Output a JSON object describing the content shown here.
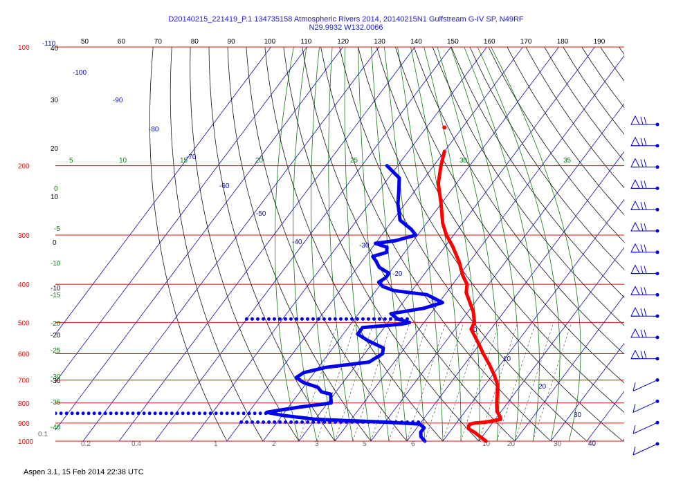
{
  "title": {
    "line1": "D20140215_221419_P.1 134735158 Atmospheric Rivers 2014, 20140215N1 Gulfstream G-IV SP, N49RF",
    "line2": "N29.9932 W132.0066"
  },
  "footer": "Aspen 3.1, 15 Feb 2014  22:38 UTC",
  "colors": {
    "isobar": "#e01010",
    "isotherm": "#0b0bb0",
    "dry_adiabat": "#111111",
    "moist_adiabat": "#117711",
    "mixing_ratio": "#555555",
    "temperature": "#ff0000",
    "dewpoint": "#0000ee",
    "wind": "#0000cc"
  },
  "chart_data": {
    "type": "skew-t",
    "grid": true,
    "pressure_levels": [
      "100",
      "200",
      "300",
      "400",
      "500",
      "600",
      "700",
      "800",
      "900",
      "1000"
    ],
    "top_scale": [
      "50",
      "60",
      "70",
      "80",
      "90",
      "100",
      "110",
      "120",
      "130",
      "140",
      "150",
      "160",
      "170",
      "180",
      "190"
    ],
    "isotherm_labels": [
      "-110",
      "-100",
      "-90",
      "-80",
      "-70",
      "-60",
      "-50",
      "-40",
      "-30",
      "-20",
      "-10",
      "0",
      "10",
      "20",
      "30",
      "40"
    ],
    "dry_adiabat_labels": [
      "40",
      "30",
      "20",
      "10",
      "0",
      "-10",
      "-20",
      "-30"
    ],
    "moist_adiabat_labels": [
      "5",
      "10",
      "15",
      "20",
      "25",
      "30",
      "35",
      "0",
      "-5",
      "-10",
      "-15",
      "-20",
      "-25",
      "-30",
      "-35",
      "-40"
    ],
    "mixing_ratio_labels": [
      "0.1",
      "0.2",
      "0.4",
      "1",
      "2",
      "3",
      "5",
      "6",
      "10",
      "20",
      "30",
      "40"
    ],
    "temperature_profile": [
      {
        "p": 184,
        "t": -60
      },
      {
        "p": 200,
        "t": -58
      },
      {
        "p": 222,
        "t": -55
      },
      {
        "p": 250,
        "t": -50
      },
      {
        "p": 280,
        "t": -45.5
      },
      {
        "p": 300,
        "t": -42
      },
      {
        "p": 320,
        "t": -38
      },
      {
        "p": 350,
        "t": -33
      },
      {
        "p": 380,
        "t": -29
      },
      {
        "p": 400,
        "t": -26
      },
      {
        "p": 420,
        "t": -24.5
      },
      {
        "p": 440,
        "t": -22
      },
      {
        "p": 470,
        "t": -18.5
      },
      {
        "p": 500,
        "t": -16
      },
      {
        "p": 520,
        "t": -15.5
      },
      {
        "p": 560,
        "t": -11
      },
      {
        "p": 600,
        "t": -7
      },
      {
        "p": 640,
        "t": -3
      },
      {
        "p": 680,
        "t": 0.5
      },
      {
        "p": 720,
        "t": 3.5
      },
      {
        "p": 760,
        "t": 5.3
      },
      {
        "p": 800,
        "t": 7
      },
      {
        "p": 840,
        "t": 8.8
      },
      {
        "p": 870,
        "t": 11
      },
      {
        "p": 880,
        "t": 11.5
      },
      {
        "p": 895,
        "t": 8
      },
      {
        "p": 900,
        "t": 5
      },
      {
        "p": 905,
        "t": 4
      },
      {
        "p": 915,
        "t": 4
      },
      {
        "p": 930,
        "t": 4.5
      },
      {
        "p": 950,
        "t": 7
      },
      {
        "p": 980,
        "t": 10
      },
      {
        "p": 1000,
        "t": 12
      }
    ],
    "temperature_isolated_point": {
      "p": 160,
      "t": -65
    },
    "dewpoint_profile": [
      {
        "p": 200,
        "t": -73
      },
      {
        "p": 215,
        "t": -67
      },
      {
        "p": 235,
        "t": -64
      },
      {
        "p": 250,
        "t": -62
      },
      {
        "p": 262,
        "t": -60
      },
      {
        "p": 275,
        "t": -58
      },
      {
        "p": 290,
        "t": -53
      },
      {
        "p": 300,
        "t": -50.5
      },
      {
        "p": 310,
        "t": -55
      },
      {
        "p": 315,
        "t": -60
      },
      {
        "p": 322,
        "t": -56
      },
      {
        "p": 332,
        "t": -55
      },
      {
        "p": 340,
        "t": -58
      },
      {
        "p": 350,
        "t": -56
      },
      {
        "p": 362,
        "t": -54
      },
      {
        "p": 375,
        "t": -50
      },
      {
        "p": 385,
        "t": -50
      },
      {
        "p": 395,
        "t": -51
      },
      {
        "p": 405,
        "t": -49
      },
      {
        "p": 415,
        "t": -45
      },
      {
        "p": 425,
        "t": -35
      },
      {
        "p": 445,
        "t": -29
      },
      {
        "p": 460,
        "t": -33
      },
      {
        "p": 475,
        "t": -41
      },
      {
        "p": 490,
        "t": -38
      },
      {
        "p": 500,
        "t": -34
      },
      {
        "p": 505,
        "t": -36
      },
      {
        "p": 515,
        "t": -46
      },
      {
        "p": 535,
        "t": -46
      },
      {
        "p": 555,
        "t": -42
      },
      {
        "p": 580,
        "t": -36
      },
      {
        "p": 600,
        "t": -35
      },
      {
        "p": 630,
        "t": -37
      },
      {
        "p": 650,
        "t": -48
      },
      {
        "p": 670,
        "t": -53
      },
      {
        "p": 690,
        "t": -54
      },
      {
        "p": 710,
        "t": -51
      },
      {
        "p": 730,
        "t": -46
      },
      {
        "p": 750,
        "t": -44
      },
      {
        "p": 760,
        "t": -41
      },
      {
        "p": 780,
        "t": -40
      },
      {
        "p": 800,
        "t": -39
      },
      {
        "p": 820,
        "t": -47
      },
      {
        "p": 835,
        "t": -52
      },
      {
        "p": 845,
        "t": -55
      },
      {
        "p": 860,
        "t": -50
      },
      {
        "p": 880,
        "t": -40
      },
      {
        "p": 895,
        "t": -20
      },
      {
        "p": 905,
        "t": -10
      },
      {
        "p": 925,
        "t": -8
      },
      {
        "p": 950,
        "t": -8
      },
      {
        "p": 975,
        "t": -7
      },
      {
        "p": 1000,
        "t": -5
      }
    ],
    "dewpoint_dotted_segments": [
      {
        "p": 490,
        "t_start": -80,
        "t_end": -34
      },
      {
        "p": 850,
        "t_start": -115,
        "t_end": -55
      },
      {
        "p": 895,
        "t_start": -60,
        "t_end": -10
      }
    ],
    "wind_barbs_count": 16
  }
}
